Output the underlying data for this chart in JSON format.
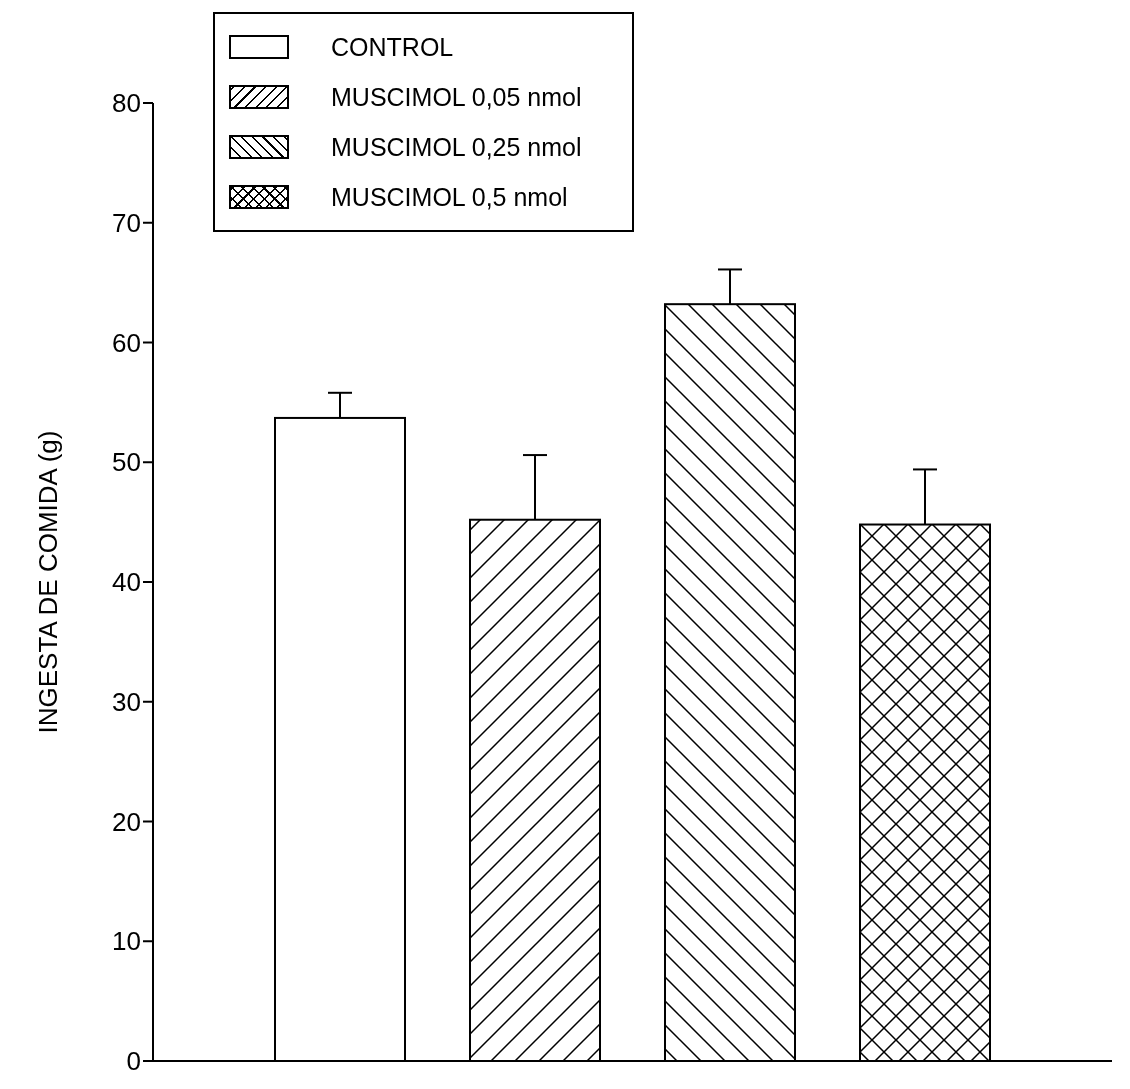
{
  "chart_data": {
    "type": "bar",
    "ylabel": "INGESTA DE COMIDA (g)",
    "categories": [
      null
    ],
    "ylim": [
      0,
      80
    ],
    "yticks": [
      0,
      10,
      20,
      30,
      40,
      50,
      60,
      70,
      80
    ],
    "legend": "top left",
    "grid": false,
    "series": [
      {
        "name": "CONTROL",
        "color": "#ffffff",
        "values": [
          53.7
        ],
        "errors": [
          [
            53.7,
            55.8
          ]
        ]
      },
      {
        "name": "MUSCIMOL 0,05 nmol",
        "color": "#000000",
        "values": [
          45.2
        ],
        "errors": [
          [
            45.2,
            50.6
          ]
        ]
      },
      {
        "name": "MUSCIMOL 0,25 nmol",
        "color": "#000000",
        "values": [
          63.2
        ],
        "errors": [
          [
            63.2,
            66.1
          ]
        ]
      },
      {
        "name": "MUSCIMOL 0,5 nmol",
        "color": "#000000",
        "values": [
          44.8
        ],
        "errors": [
          [
            44.8,
            49.4
          ]
        ]
      }
    ]
  }
}
